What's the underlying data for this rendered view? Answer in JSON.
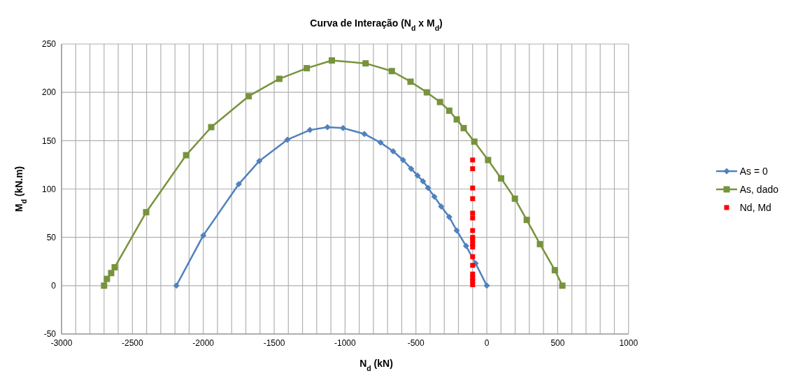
{
  "chart_data": {
    "type": "line",
    "title": "Curva de Interação (N$_{d}$ x M$_{d}$)",
    "xlabel": "N$_{d}$ (kN)",
    "ylabel": "M$_{d}$ (kN.m)",
    "xlim": [
      -3000,
      1000
    ],
    "ylim": [
      -50,
      250
    ],
    "xticks": [
      -3000,
      {
        "value": -2900,
        "label": null
      },
      {
        "value": -2800,
        "label": null
      },
      {
        "value": -2700,
        "label": null
      },
      {
        "value": -2600,
        "label": null
      },
      -2500,
      {
        "value": -2400,
        "label": null
      },
      {
        "value": -2300,
        "label": null
      },
      {
        "value": -2200,
        "label": null
      },
      {
        "value": -2100,
        "label": null
      },
      -2000,
      {
        "value": -1900,
        "label": null
      },
      {
        "value": -1800,
        "label": null
      },
      {
        "value": -1700,
        "label": null
      },
      {
        "value": -1600,
        "label": null
      },
      -1500,
      {
        "value": -1400,
        "label": null
      },
      {
        "value": -1300,
        "label": null
      },
      {
        "value": -1200,
        "label": null
      },
      {
        "value": -1100,
        "label": null
      },
      -1000,
      {
        "value": -900,
        "label": null
      },
      {
        "value": -800,
        "label": null
      },
      {
        "value": -700,
        "label": null
      },
      {
        "value": -600,
        "label": null
      },
      -500,
      {
        "value": -400,
        "label": null
      },
      {
        "value": -300,
        "label": null
      },
      {
        "value": -200,
        "label": null
      },
      {
        "value": -100,
        "label": null
      },
      0,
      {
        "value": 100,
        "label": null
      },
      {
        "value": 200,
        "label": null
      },
      {
        "value": 300,
        "label": null
      },
      {
        "value": 400,
        "label": null
      },
      500,
      {
        "value": 600,
        "label": null
      },
      {
        "value": 700,
        "label": null
      },
      {
        "value": 800,
        "label": null
      },
      {
        "value": 900,
        "label": null
      },
      1000
    ],
    "yticks": [
      -50,
      0,
      50,
      100,
      150,
      200,
      250
    ],
    "grid": true,
    "legend": "right",
    "series": [
      {
        "name": "As = 0",
        "color": "#4f81bd",
        "marker": "diamond",
        "x": [
          -2190,
          -2000,
          -1750,
          -1605,
          -1407,
          -1248,
          -1124,
          -1014,
          -864,
          -750,
          -661,
          -591,
          -534,
          -489,
          -450,
          -414,
          -370,
          -322,
          -265,
          -212,
          -146,
          -79,
          0
        ],
        "values": [
          0,
          52,
          105,
          129,
          151,
          161,
          164,
          163,
          157,
          148,
          139,
          130,
          121,
          114,
          108,
          101,
          92,
          82,
          71,
          57,
          41,
          23,
          0
        ]
      },
      {
        "name": "As, dado",
        "color": "#77933c",
        "marker": "square",
        "x": [
          -2700,
          -2680,
          -2650,
          -2625,
          -2403,
          -2121,
          -1944,
          -1680,
          -1464,
          -1270,
          -1093,
          null,
          -855,
          -670,
          -538,
          -423,
          -330,
          -265,
          -212,
          -163,
          -88,
          9,
          101,
          198,
          282,
          375,
          480,
          533
        ],
        "values": [
          0,
          7,
          13,
          19,
          76,
          135,
          164,
          196,
          214,
          225,
          233,
          null,
          230,
          222,
          211,
          200,
          190,
          181,
          172,
          163,
          149,
          130,
          111,
          90,
          68,
          43,
          16,
          0
        ]
      },
      {
        "name": "Nd, Md",
        "color": "#ff0000",
        "type": "scatter",
        "marker": "square",
        "x": [
          -100,
          -100,
          -100,
          -100,
          -100,
          -100,
          -100,
          -100,
          -100,
          -100,
          -100,
          -100,
          -100,
          -100,
          -100,
          -100,
          -100
        ],
        "values": [
          130,
          121,
          101,
          90,
          75,
          70,
          57,
          50,
          47,
          43,
          40,
          30,
          21,
          12,
          8,
          5,
          1
        ]
      }
    ]
  }
}
